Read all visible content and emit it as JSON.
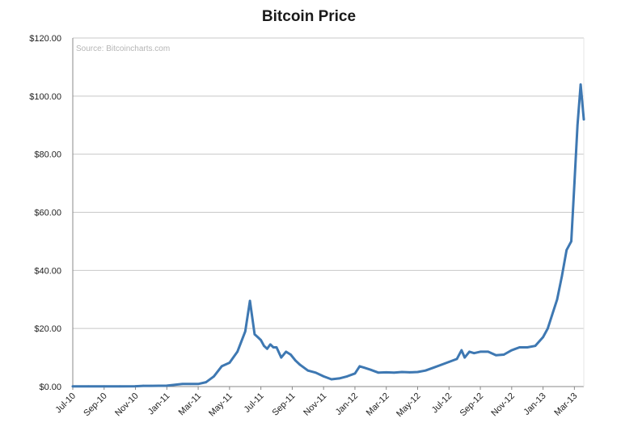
{
  "chart_data": {
    "type": "line",
    "title": "Bitcoin Price",
    "source": "Source: Bitcoincharts.com",
    "xlabel": "",
    "ylabel": "",
    "ylim": [
      0,
      120
    ],
    "grid": true,
    "legend": "none",
    "y_ticks": [
      0,
      20,
      40,
      60,
      80,
      100,
      120
    ],
    "y_tick_labels": [
      "$0.00",
      "$20.00",
      "$40.00",
      "$60.00",
      "$80.00",
      "$100.00",
      "$120.00"
    ],
    "x_ticks": [
      "Jul-10",
      "Sep-10",
      "Nov-10",
      "Jan-11",
      "Mar-11",
      "May-11",
      "Jul-11",
      "Sep-11",
      "Nov-11",
      "Jan-12",
      "Mar-12",
      "May-12",
      "Jul-12",
      "Sep-12",
      "Nov-12",
      "Jan-13",
      "Mar-13"
    ],
    "x_range_months": [
      0,
      32.6
    ],
    "series": [
      {
        "name": "Bitcoin Price",
        "color": "#3e78b2",
        "x": [
          0,
          1,
          2,
          3,
          4,
          4.5,
          5,
          6,
          7,
          7.5,
          8,
          8.5,
          9,
          9.5,
          10,
          10.5,
          11,
          11.3,
          11.6,
          11.8,
          12,
          12.2,
          12.4,
          12.6,
          12.8,
          13,
          13.3,
          13.6,
          13.9,
          14.2,
          14.5,
          15,
          15.5,
          16,
          16.5,
          17,
          17.5,
          18,
          18.3,
          18.6,
          19,
          19.5,
          20,
          20.5,
          21,
          21.5,
          22,
          22.5,
          23,
          23.5,
          24,
          24.5,
          24.8,
          25,
          25.3,
          25.6,
          26,
          26.5,
          27,
          27.5,
          28,
          28.5,
          29,
          29.5,
          30,
          30.3,
          30.6,
          30.9,
          31.2,
          31.5,
          31.8,
          32,
          32.2,
          32.4,
          32.6
        ],
        "values": [
          0.07,
          0.07,
          0.07,
          0.07,
          0.1,
          0.25,
          0.25,
          0.3,
          0.9,
          0.9,
          0.9,
          1.5,
          3.5,
          7,
          8.2,
          12,
          19,
          29.5,
          18,
          17,
          16,
          14,
          13,
          14.5,
          13.5,
          13.5,
          10,
          12,
          11,
          9,
          7.5,
          5.5,
          4.8,
          3.5,
          2.5,
          2.8,
          3.5,
          4.5,
          7,
          6.5,
          5.8,
          4.8,
          4.9,
          4.8,
          5,
          4.9,
          5,
          5.5,
          6.5,
          7.5,
          8.5,
          9.5,
          12.5,
          10,
          12,
          11.5,
          12,
          12,
          10.8,
          11,
          12.5,
          13.5,
          13.5,
          14,
          17,
          20,
          25,
          30,
          38,
          47,
          50,
          70,
          90,
          104,
          92
        ]
      }
    ]
  }
}
